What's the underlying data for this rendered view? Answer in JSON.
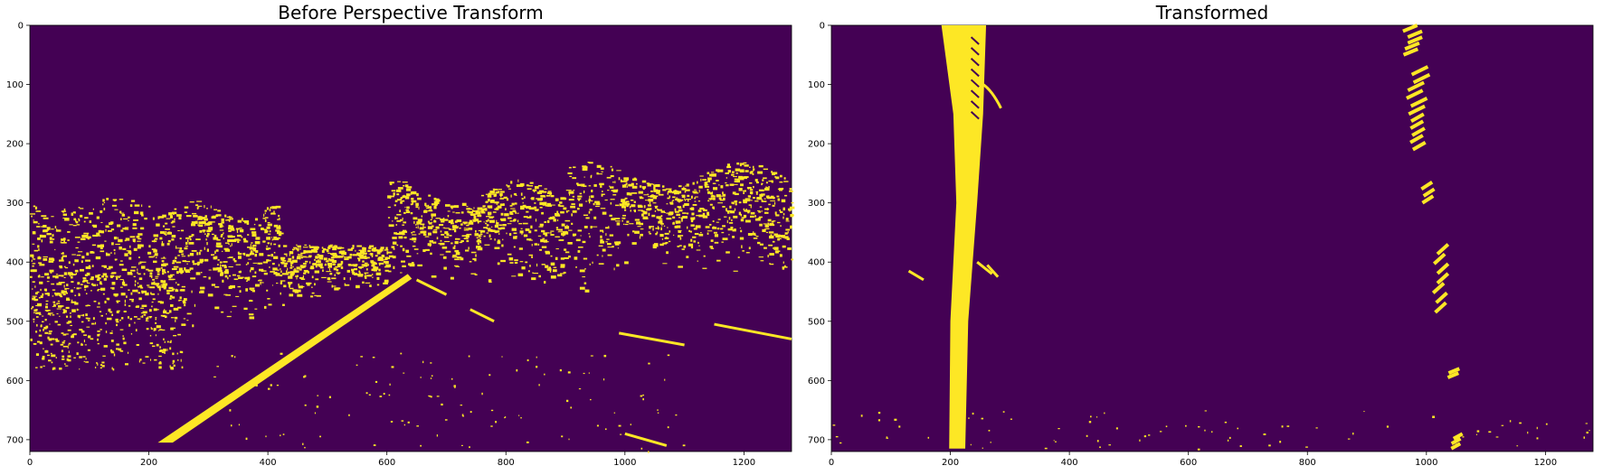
{
  "panels": [
    {
      "title": "Before Perspective Transform",
      "x_ticks": [
        "0",
        "200",
        "400",
        "600",
        "800",
        "1000",
        "1200"
      ],
      "y_ticks": [
        "0",
        "100",
        "200",
        "300",
        "400",
        "500",
        "600",
        "700"
      ]
    },
    {
      "title": "Transformed",
      "x_ticks": [
        "0",
        "200",
        "400",
        "600",
        "800",
        "1000",
        "1200"
      ],
      "y_ticks": [
        "0",
        "100",
        "200",
        "300",
        "400",
        "500",
        "600",
        "700"
      ]
    }
  ],
  "image_size": {
    "width": 1280,
    "height": 720
  },
  "colors": {
    "background": "#440154",
    "foreground": "#fde725"
  }
}
